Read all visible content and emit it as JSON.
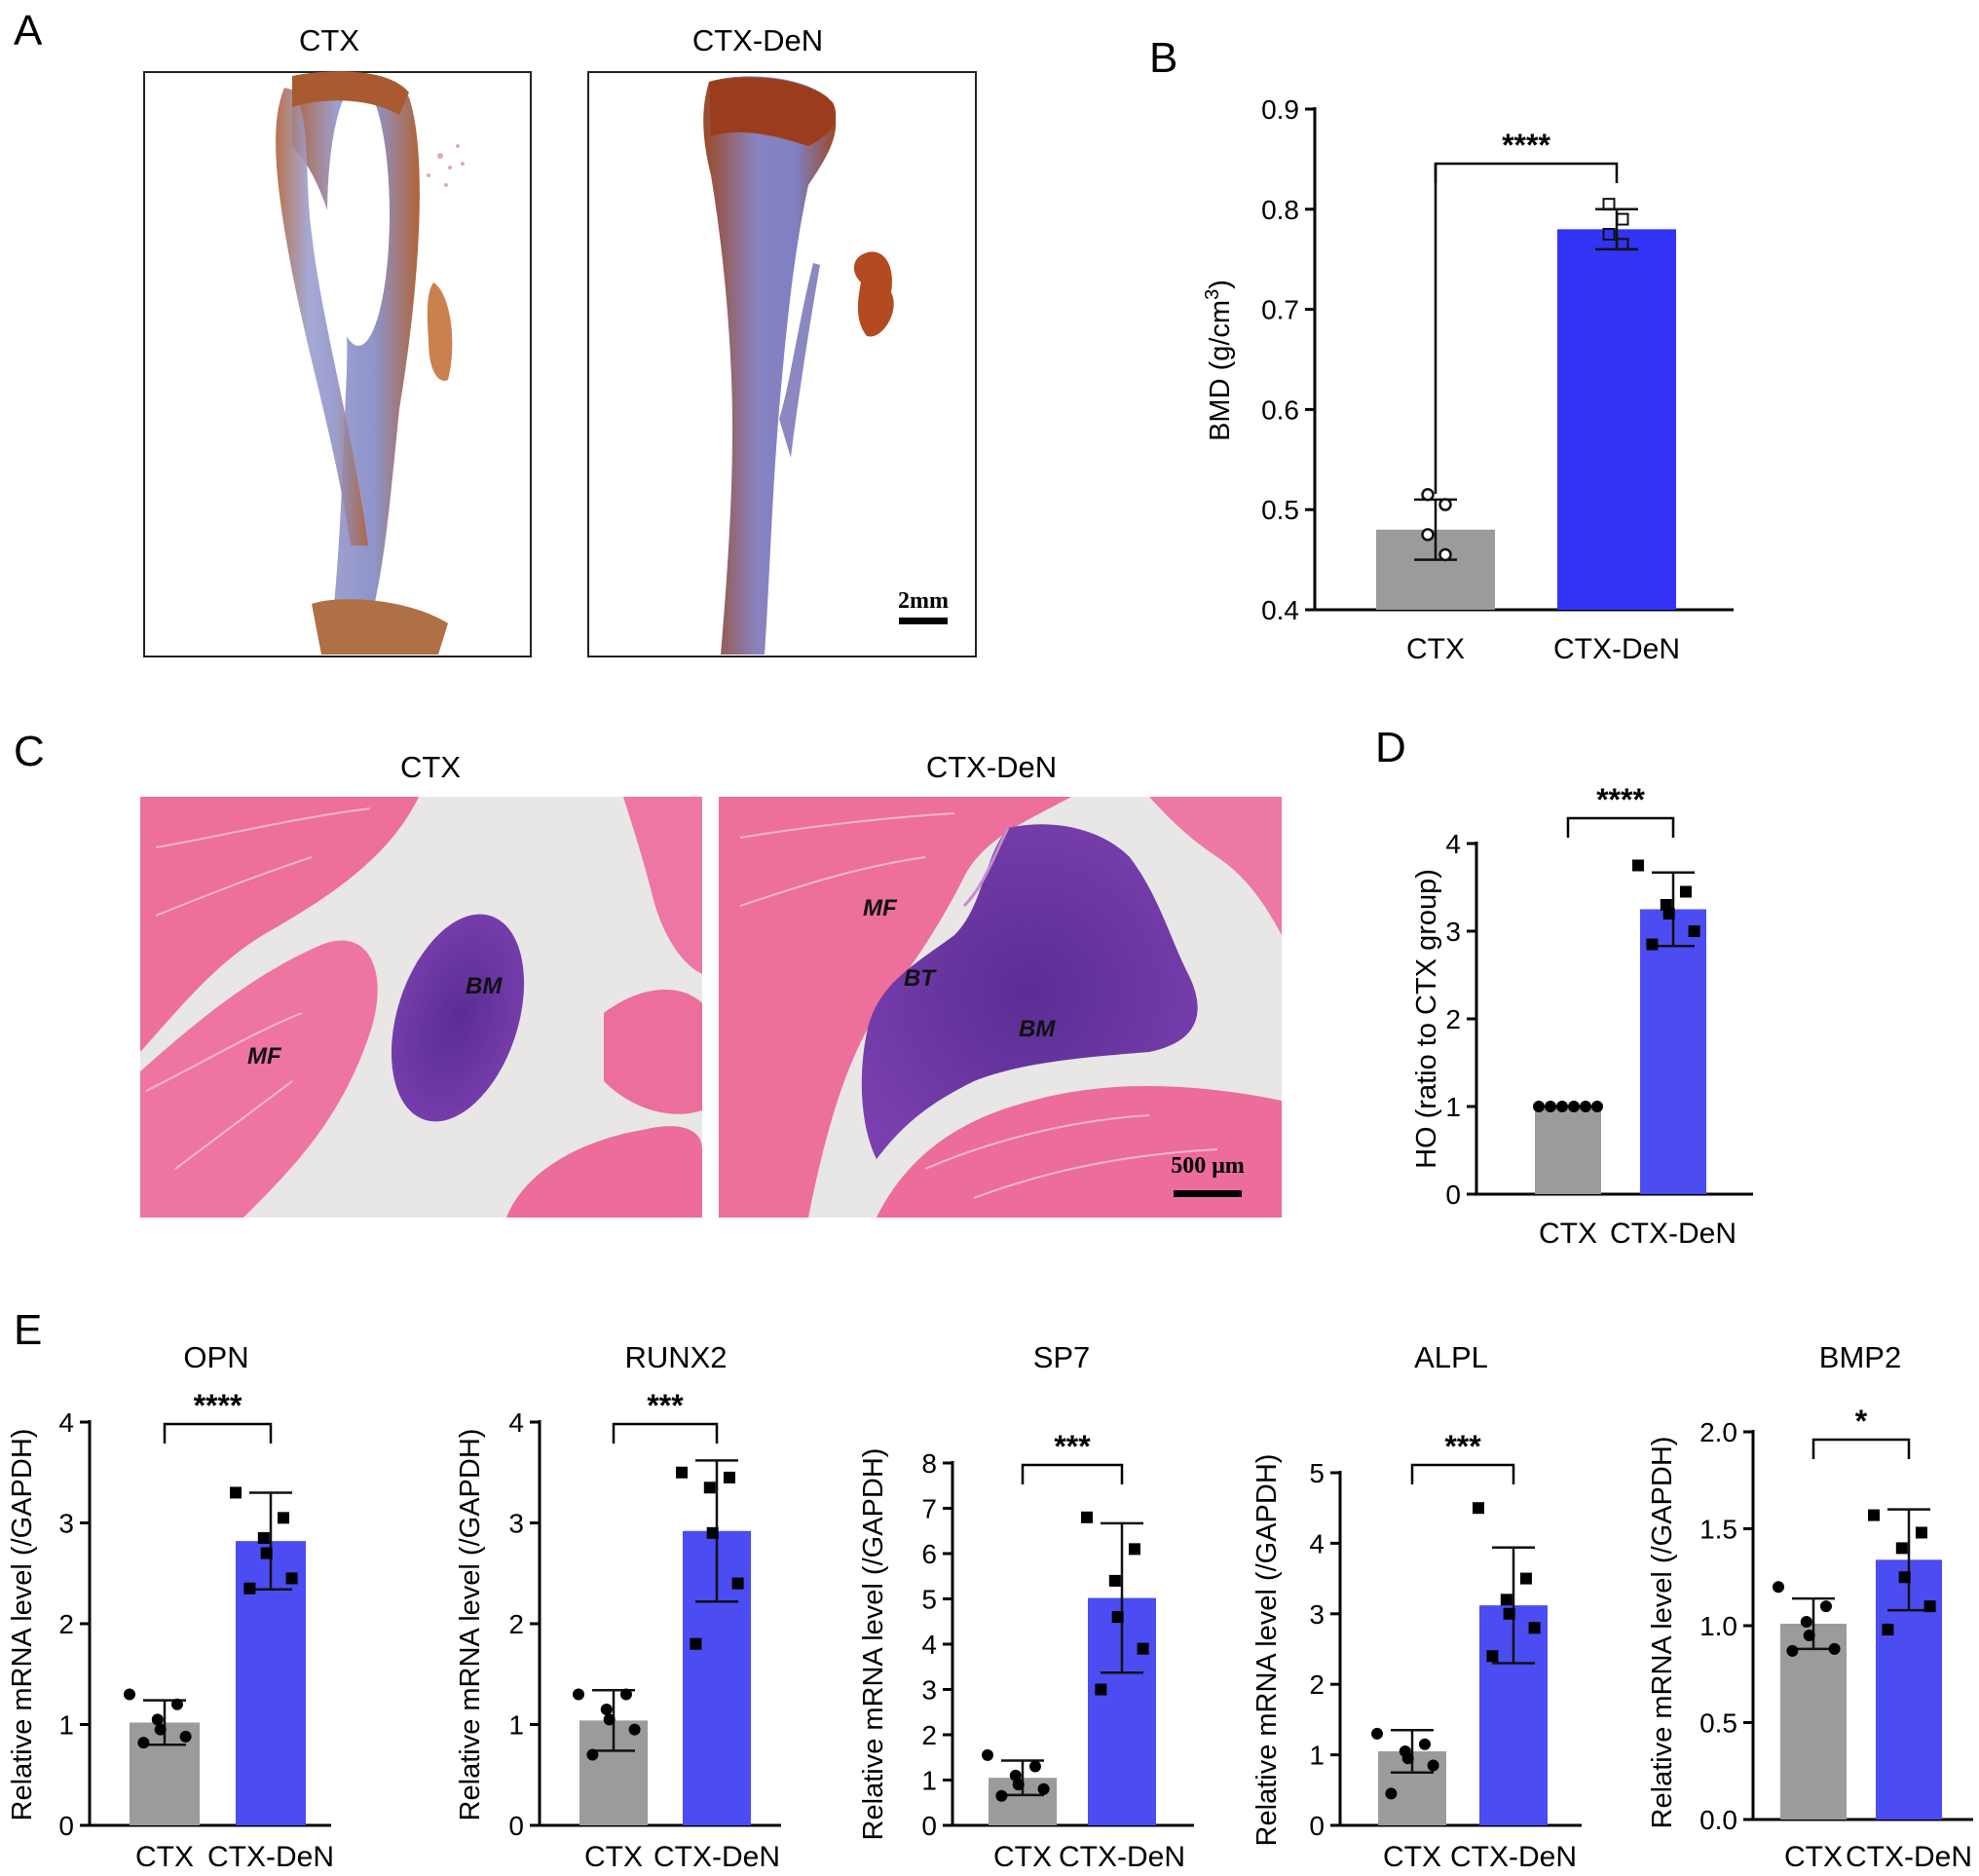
{
  "panels": {
    "A": {
      "letter": "A",
      "titles": [
        "CTX",
        "CTX-DeN"
      ],
      "scale_bar": "2mm"
    },
    "C": {
      "letter": "C",
      "titles": [
        "CTX",
        "CTX-DeN"
      ],
      "scale_bar": "500 μm",
      "labels_left": [
        "BM",
        "MF"
      ],
      "labels_right": [
        "MF",
        "BT",
        "BM"
      ]
    }
  },
  "colors": {
    "ctx_bar": "#9a9b9d",
    "den_bar": "#4b4cf2",
    "bmd_den_bar": "#3333f5"
  },
  "chart_data": [
    {
      "id": "B",
      "letter": "B",
      "type": "bar",
      "title": "",
      "ylabel": "BMD (g/cm3)",
      "categories": [
        "CTX",
        "CTX-DeN"
      ],
      "values": [
        0.48,
        0.78
      ],
      "sd": [
        0.03,
        0.02
      ],
      "points": [
        [
          0.515,
          0.505,
          0.475,
          0.455
        ],
        [
          0.805,
          0.79,
          0.775,
          0.765
        ]
      ],
      "marker": "open",
      "ylim": [
        0.4,
        0.9
      ],
      "yticks": [
        "0.4",
        "0.5",
        "0.6",
        "0.7",
        "0.8",
        "0.9"
      ],
      "significance": "****"
    },
    {
      "id": "D",
      "letter": "D",
      "type": "bar",
      "title": "",
      "ylabel": "HO (ratio to CTX group)",
      "categories": [
        "CTX",
        "CTX-DeN"
      ],
      "values": [
        1.0,
        3.25
      ],
      "sd": [
        0.0,
        0.42
      ],
      "points": [
        [
          1,
          1,
          1,
          1,
          1,
          1
        ],
        [
          3.75,
          3.45,
          3.3,
          3.2,
          3.0,
          2.85
        ]
      ],
      "marker": "square",
      "ylim": [
        0,
        4
      ],
      "yticks": [
        "0",
        "1",
        "2",
        "3",
        "4"
      ],
      "significance": "****"
    },
    {
      "id": "E1",
      "letter": "E",
      "type": "bar",
      "title": "OPN",
      "ylabel": "Relative mRNA level (/GAPDH)",
      "categories": [
        "CTX",
        "CTX-DeN"
      ],
      "values": [
        1.02,
        2.82
      ],
      "sd": [
        0.22,
        0.48
      ],
      "points": [
        [
          1.3,
          1.2,
          1.05,
          0.95,
          0.88,
          0.82
        ],
        [
          3.3,
          3.05,
          2.85,
          2.7,
          2.45,
          2.35
        ]
      ],
      "marker": "circle_square",
      "ylim": [
        0,
        4
      ],
      "yticks": [
        "0",
        "1",
        "2",
        "3",
        "4"
      ],
      "significance": "****"
    },
    {
      "id": "E2",
      "letter": "",
      "type": "bar",
      "title": "RUNX2",
      "ylabel": "Relative mRNA level (/GAPDH)",
      "categories": [
        "CTX",
        "CTX-DeN"
      ],
      "values": [
        1.04,
        2.92
      ],
      "sd": [
        0.3,
        0.7
      ],
      "points": [
        [
          1.3,
          1.3,
          1.15,
          1.05,
          0.95,
          0.7
        ],
        [
          3.5,
          3.45,
          3.35,
          2.9,
          2.4,
          1.8
        ]
      ],
      "marker": "circle_square",
      "ylim": [
        0,
        4
      ],
      "yticks": [
        "0",
        "1",
        "2",
        "3",
        "4"
      ],
      "significance": "***"
    },
    {
      "id": "E3",
      "letter": "",
      "type": "bar",
      "title": "SP7",
      "ylabel": "Relative mRNA level (/GAPDH)",
      "categories": [
        "CTX",
        "CTX-DeN"
      ],
      "values": [
        1.05,
        5.02
      ],
      "sd": [
        0.38,
        1.65
      ],
      "points": [
        [
          1.55,
          1.3,
          1.1,
          0.9,
          0.8,
          0.65
        ],
        [
          6.8,
          6.1,
          5.4,
          4.6,
          3.9,
          3.0
        ]
      ],
      "marker": "circle_square",
      "ylim": [
        0,
        8
      ],
      "yticks": [
        "0",
        "1",
        "2",
        "3",
        "4",
        "5",
        "6",
        "7",
        "8"
      ],
      "significance": "***"
    },
    {
      "id": "E4",
      "letter": "",
      "type": "bar",
      "title": "ALPL",
      "ylabel": "Relative mRNA level (/GAPDH)",
      "categories": [
        "CTX",
        "CTX-DeN"
      ],
      "values": [
        1.05,
        3.12
      ],
      "sd": [
        0.3,
        0.82
      ],
      "points": [
        [
          1.3,
          1.15,
          1.05,
          0.95,
          0.85,
          0.45
        ],
        [
          4.5,
          3.5,
          3.2,
          3.0,
          2.8,
          2.4
        ]
      ],
      "marker": "circle_square",
      "ylim": [
        0,
        5
      ],
      "yticks": [
        "0",
        "1",
        "2",
        "3",
        "4",
        "5"
      ],
      "significance": "***"
    },
    {
      "id": "E5",
      "letter": "",
      "type": "bar",
      "title": "BMP2",
      "ylabel": "Relative mRNA level (/GAPDH)",
      "categories": [
        "CTX",
        "CTX-DeN"
      ],
      "values": [
        1.01,
        1.34
      ],
      "sd": [
        0.13,
        0.26
      ],
      "points": [
        [
          1.2,
          1.1,
          1.02,
          0.95,
          0.88,
          0.87
        ],
        [
          1.57,
          1.48,
          1.4,
          1.25,
          1.1,
          0.98
        ]
      ],
      "marker": "circle_square",
      "ylim": [
        0,
        2
      ],
      "yticks": [
        "0.0",
        "0.5",
        "1.0",
        "1.5",
        "2.0"
      ],
      "significance": "*"
    }
  ]
}
